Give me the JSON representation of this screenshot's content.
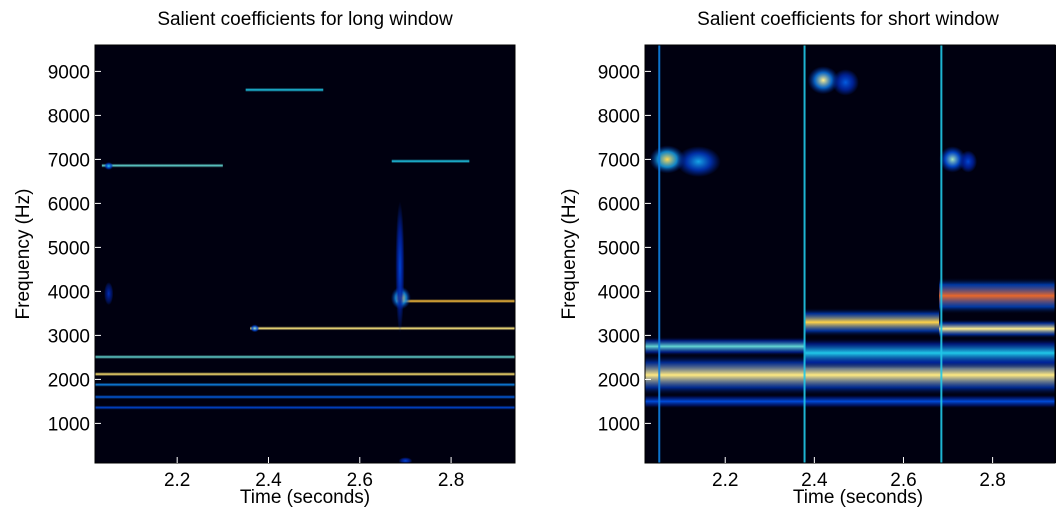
{
  "chart_data": [
    {
      "type": "heatmap",
      "title": "Salient coefficients for long window",
      "xlabel": "Time (seconds)",
      "ylabel": "Frequency (Hz)",
      "xlim": [
        2.02,
        2.94
      ],
      "ylim": [
        100,
        9600
      ],
      "x_ticks": [
        2.2,
        2.4,
        2.6,
        2.8
      ],
      "y_ticks": [
        1000,
        2000,
        3000,
        4000,
        5000,
        6000,
        7000,
        8000,
        9000
      ],
      "x_tick_labels": [
        "2.2",
        "2.4",
        "2.6",
        "2.8"
      ],
      "y_tick_labels": [
        "1000",
        "2000",
        "3000",
        "4000",
        "5000",
        "6000",
        "7000",
        "8000",
        "9000"
      ],
      "colormap": [
        "#000010",
        "#0020a0",
        "#0050e0",
        "#20c8e8",
        "#fff5a0",
        "#ffd040",
        "#e03a20"
      ],
      "features": [
        {
          "kind": "partial",
          "t0": 2.02,
          "t1": 2.94,
          "f": 2120,
          "intensity": 0.75
        },
        {
          "kind": "partial",
          "t0": 2.02,
          "t1": 2.94,
          "f": 2510,
          "intensity": 0.55
        },
        {
          "kind": "partial",
          "t0": 2.02,
          "t1": 2.94,
          "f": 1880,
          "intensity": 0.4
        },
        {
          "kind": "partial",
          "t0": 2.02,
          "t1": 2.94,
          "f": 1600,
          "intensity": 0.35
        },
        {
          "kind": "partial",
          "t0": 2.02,
          "t1": 2.94,
          "f": 1360,
          "intensity": 0.3
        },
        {
          "kind": "partial",
          "t0": 2.36,
          "t1": 2.94,
          "f": 3160,
          "intensity": 0.72
        },
        {
          "kind": "partial",
          "t0": 2.68,
          "t1": 2.94,
          "f": 3780,
          "intensity": 0.85
        },
        {
          "kind": "partial",
          "t0": 2.035,
          "t1": 2.3,
          "f": 6860,
          "intensity": 0.55
        },
        {
          "kind": "partial",
          "t0": 2.35,
          "t1": 2.52,
          "f": 8580,
          "intensity": 0.5
        },
        {
          "kind": "partial",
          "t0": 2.67,
          "t1": 2.84,
          "f": 6960,
          "intensity": 0.5
        },
        {
          "kind": "blob",
          "t": 2.69,
          "f": 3850,
          "dt": 0.022,
          "df": 260,
          "intensity": 0.75
        },
        {
          "kind": "blob",
          "t": 2.688,
          "f": 4550,
          "dt": 0.01,
          "df": 1500,
          "intensity": 0.3
        },
        {
          "kind": "blob",
          "t": 2.05,
          "f": 3950,
          "dt": 0.01,
          "df": 260,
          "intensity": 0.22
        },
        {
          "kind": "blob",
          "t": 2.05,
          "f": 6850,
          "dt": 0.01,
          "df": 90,
          "intensity": 0.5
        },
        {
          "kind": "blob",
          "t": 2.37,
          "f": 3160,
          "dt": 0.01,
          "df": 90,
          "intensity": 0.6
        },
        {
          "kind": "blob",
          "t": 2.7,
          "f": 150,
          "dt": 0.015,
          "df": 80,
          "intensity": 0.3
        }
      ]
    },
    {
      "type": "heatmap",
      "title": "Salient coefficients for short window",
      "xlabel": "Time (seconds)",
      "ylabel": "Frequency (Hz)",
      "xlim": [
        2.02,
        2.94
      ],
      "ylim": [
        100,
        9600
      ],
      "x_ticks": [
        2.2,
        2.4,
        2.6,
        2.8
      ],
      "y_ticks": [
        1000,
        2000,
        3000,
        4000,
        5000,
        6000,
        7000,
        8000,
        9000
      ],
      "x_tick_labels": [
        "2.2",
        "2.4",
        "2.6",
        "2.8"
      ],
      "y_tick_labels": [
        "1000",
        "2000",
        "3000",
        "4000",
        "5000",
        "6000",
        "7000",
        "8000",
        "9000"
      ],
      "colormap": [
        "#000010",
        "#0020a0",
        "#0050e0",
        "#20c8e8",
        "#fff5a0",
        "#ffd040",
        "#e03a20"
      ],
      "features": [
        {
          "kind": "band",
          "t0": 2.02,
          "t1": 2.94,
          "f": 2100,
          "df": 480,
          "intensity": 0.72
        },
        {
          "kind": "band",
          "t0": 2.02,
          "t1": 2.94,
          "f": 1500,
          "df": 160,
          "intensity": 0.32
        },
        {
          "kind": "band",
          "t0": 2.02,
          "t1": 2.38,
          "f": 2750,
          "df": 220,
          "intensity": 0.55
        },
        {
          "kind": "band",
          "t0": 2.38,
          "t1": 2.94,
          "f": 2600,
          "df": 350,
          "intensity": 0.5
        },
        {
          "kind": "band",
          "t0": 2.38,
          "t1": 2.68,
          "f": 3300,
          "df": 330,
          "intensity": 0.82
        },
        {
          "kind": "band",
          "t0": 2.68,
          "t1": 2.94,
          "f": 3150,
          "df": 220,
          "intensity": 0.7
        },
        {
          "kind": "band",
          "t0": 2.68,
          "t1": 2.94,
          "f": 3900,
          "df": 420,
          "intensity": 0.95
        },
        {
          "kind": "blob",
          "t": 2.07,
          "f": 7000,
          "dt": 0.04,
          "df": 320,
          "intensity": 0.8
        },
        {
          "kind": "blob",
          "t": 2.14,
          "f": 6950,
          "dt": 0.05,
          "df": 350,
          "intensity": 0.45
        },
        {
          "kind": "blob",
          "t": 2.42,
          "f": 8800,
          "dt": 0.035,
          "df": 320,
          "intensity": 0.7
        },
        {
          "kind": "blob",
          "t": 2.47,
          "f": 8750,
          "dt": 0.03,
          "df": 300,
          "intensity": 0.35
        },
        {
          "kind": "blob",
          "t": 2.71,
          "f": 7000,
          "dt": 0.03,
          "df": 300,
          "intensity": 0.6
        },
        {
          "kind": "blob",
          "t": 2.745,
          "f": 6950,
          "dt": 0.02,
          "df": 250,
          "intensity": 0.3
        },
        {
          "kind": "vline",
          "t": 2.052,
          "intensity": 0.4
        },
        {
          "kind": "vline",
          "t": 2.378,
          "intensity": 0.5
        },
        {
          "kind": "vline",
          "t": 2.685,
          "intensity": 0.5
        }
      ]
    }
  ]
}
